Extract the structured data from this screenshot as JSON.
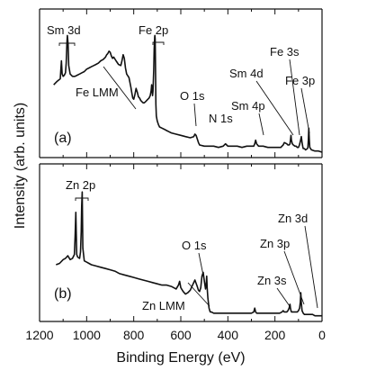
{
  "chart_data": {
    "type": "line",
    "xlabel": "Binding Energy (eV)",
    "ylabel": "Intensity (arb. units)",
    "xlim": [
      1200,
      0
    ],
    "xticks": [
      "1200",
      "1000",
      "800",
      "600",
      "400",
      "200",
      "0"
    ],
    "xtick_values": [
      1200,
      1000,
      800,
      600,
      400,
      200,
      0
    ],
    "ylim": [
      0,
      1
    ],
    "grid": false,
    "panels": [
      {
        "label": "(a)",
        "series": [
          {
            "x": [
              1140,
              1125,
              1112,
              1110,
              1107,
              1104,
              1100,
              1095,
              1090,
              1087,
              1084,
              1082,
              1079,
              1076,
              1070,
              1060,
              1050,
              1040,
              1030,
              1020,
              1010,
              1000,
              990,
              980,
              970,
              960,
              950,
              940,
              930,
              920,
              915,
              910,
              905,
              900,
              895,
              890,
              885,
              875,
              865,
              855,
              850,
              845,
              840,
              835,
              830,
              820,
              812,
              808,
              804,
              800,
              795,
              790,
              785,
              780,
              775,
              770,
              765,
              760,
              755,
              750,
              745,
              740,
              735,
              730,
              726,
              724,
              722,
              720,
              718,
              715,
              713,
              711,
              710,
              709,
              708,
              707,
              706,
              704,
              700,
              695,
              690,
              680,
              670,
              660,
              650,
              640,
              620,
              600,
              580,
              560,
              545,
              540,
              535,
              530,
              525,
              520,
              500,
              480,
              460,
              440,
              420,
              410,
              405,
              400,
              380,
              360,
              340,
              320,
              300,
              290,
              286,
              282,
              278,
              270,
              250,
              230,
              200,
              185,
              175,
              170,
              165,
              160,
              150,
              145,
              140,
              136,
              134,
              132,
              130,
              126,
              122,
              115,
              110,
              105,
              100,
              96,
              92,
              88,
              85,
              82,
              80,
              75,
              70,
              62,
              60,
              58,
              56,
              54,
              52,
              45,
              30,
              15,
              0
            ],
            "y": [
              0.58,
              0.61,
              0.63,
              0.69,
              0.78,
              0.67,
              0.65,
              0.66,
              0.68,
              0.76,
              0.93,
              0.99,
              0.92,
              0.74,
              0.67,
              0.65,
              0.65,
              0.66,
              0.67,
              0.68,
              0.69,
              0.71,
              0.72,
              0.73,
              0.74,
              0.75,
              0.76,
              0.78,
              0.79,
              0.81,
              0.83,
              0.84,
              0.86,
              0.85,
              0.82,
              0.8,
              0.81,
              0.78,
              0.75,
              0.74,
              0.78,
              0.83,
              0.8,
              0.72,
              0.67,
              0.64,
              0.56,
              0.51,
              0.47,
              0.46,
              0.5,
              0.55,
              0.52,
              0.48,
              0.47,
              0.45,
              0.44,
              0.43,
              0.43,
              0.44,
              0.45,
              0.46,
              0.47,
              0.49,
              0.53,
              0.58,
              0.53,
              0.49,
              0.53,
              0.7,
              0.88,
              0.98,
              0.99,
              0.96,
              0.85,
              0.64,
              0.42,
              0.32,
              0.28,
              0.25,
              0.23,
              0.22,
              0.21,
              0.2,
              0.19,
              0.18,
              0.17,
              0.16,
              0.15,
              0.14,
              0.15,
              0.17,
              0.16,
              0.13,
              0.1,
              0.08,
              0.07,
              0.07,
              0.07,
              0.06,
              0.07,
              0.09,
              0.08,
              0.07,
              0.07,
              0.07,
              0.06,
              0.07,
              0.07,
              0.07,
              0.09,
              0.12,
              0.09,
              0.07,
              0.07,
              0.06,
              0.06,
              0.06,
              0.06,
              0.07,
              0.08,
              0.1,
              0.09,
              0.08,
              0.08,
              0.09,
              0.12,
              0.16,
              0.12,
              0.09,
              0.08,
              0.07,
              0.07,
              0.06,
              0.06,
              0.08,
              0.11,
              0.15,
              0.1,
              0.07,
              0.05,
              0.05,
              0.04,
              0.05,
              0.06,
              0.12,
              0.22,
              0.12,
              0.06,
              0.04,
              0.03,
              0.03,
              0.02
            ]
          }
        ],
        "annotations": [
          {
            "text": "Sm 3d"
          },
          {
            "text": "Fe 2p"
          },
          {
            "text": "Fe 3s"
          },
          {
            "text": "Sm 4d"
          },
          {
            "text": "Fe 3p"
          },
          {
            "text": "O 1s"
          },
          {
            "text": "Sm 4p"
          },
          {
            "text": "N 1s"
          },
          {
            "text": "Fe LMM"
          }
        ]
      },
      {
        "label": "(b)",
        "series": [
          {
            "x": [
              1130,
              1115,
              1100,
              1090,
              1080,
              1070,
              1060,
              1052,
              1049,
              1046,
              1044,
              1042,
              1038,
              1030,
              1026,
              1023,
              1021,
              1019,
              1016,
              1010,
              1000,
              990,
              980,
              960,
              940,
              920,
              900,
              880,
              860,
              840,
              820,
              800,
              780,
              760,
              740,
              720,
              700,
              680,
              660,
              640,
              620,
              610,
              605,
              600,
              590,
              580,
              570,
              560,
              550,
              540,
              530,
              525,
              520,
              515,
              510,
              505,
              500,
              495,
              492,
              490,
              488,
              485,
              482,
              480,
              477,
              475,
              470,
              460,
              440,
              420,
              400,
              380,
              360,
              340,
              320,
              300,
              290,
              286,
              282,
              278,
              270,
              250,
              230,
              200,
              180,
              170,
              165,
              160,
              150,
              145,
              140,
              136,
              134,
              132,
              130,
              126,
              122,
              115,
              105,
              100,
              95,
              92,
              90,
              88,
              85,
              80,
              75,
              70,
              60,
              50,
              40,
              30,
              15,
              0
            ],
            "y": [
              0.42,
              0.43,
              0.46,
              0.47,
              0.49,
              0.46,
              0.47,
              0.5,
              0.64,
              0.83,
              0.66,
              0.5,
              0.48,
              0.47,
              0.52,
              0.68,
              0.88,
              0.99,
              0.55,
              0.45,
              0.44,
              0.43,
              0.42,
              0.41,
              0.4,
              0.39,
              0.38,
              0.37,
              0.35,
              0.34,
              0.33,
              0.32,
              0.31,
              0.3,
              0.29,
              0.28,
              0.27,
              0.26,
              0.26,
              0.25,
              0.23,
              0.26,
              0.29,
              0.24,
              0.21,
              0.19,
              0.2,
              0.22,
              0.26,
              0.3,
              0.25,
              0.22,
              0.21,
              0.24,
              0.33,
              0.36,
              0.29,
              0.23,
              0.27,
              0.33,
              0.24,
              0.16,
              0.11,
              0.08,
              0.06,
              0.05,
              0.05,
              0.04,
              0.04,
              0.04,
              0.04,
              0.04,
              0.04,
              0.04,
              0.04,
              0.04,
              0.05,
              0.08,
              0.05,
              0.04,
              0.04,
              0.04,
              0.04,
              0.04,
              0.04,
              0.05,
              0.06,
              0.05,
              0.05,
              0.06,
              0.08,
              0.11,
              0.08,
              0.06,
              0.05,
              0.05,
              0.05,
              0.05,
              0.05,
              0.06,
              0.08,
              0.13,
              0.2,
              0.12,
              0.06,
              0.04,
              0.03,
              0.03,
              0.03,
              0.03,
              0.03,
              0.02,
              0.02,
              0.02
            ]
          }
        ],
        "annotations": [
          {
            "text": "Zn 2p"
          },
          {
            "text": "Zn 3d"
          },
          {
            "text": "Zn 3p"
          },
          {
            "text": "O 1s"
          },
          {
            "text": "Zn 3s"
          },
          {
            "text": "Zn LMM"
          }
        ]
      }
    ]
  }
}
